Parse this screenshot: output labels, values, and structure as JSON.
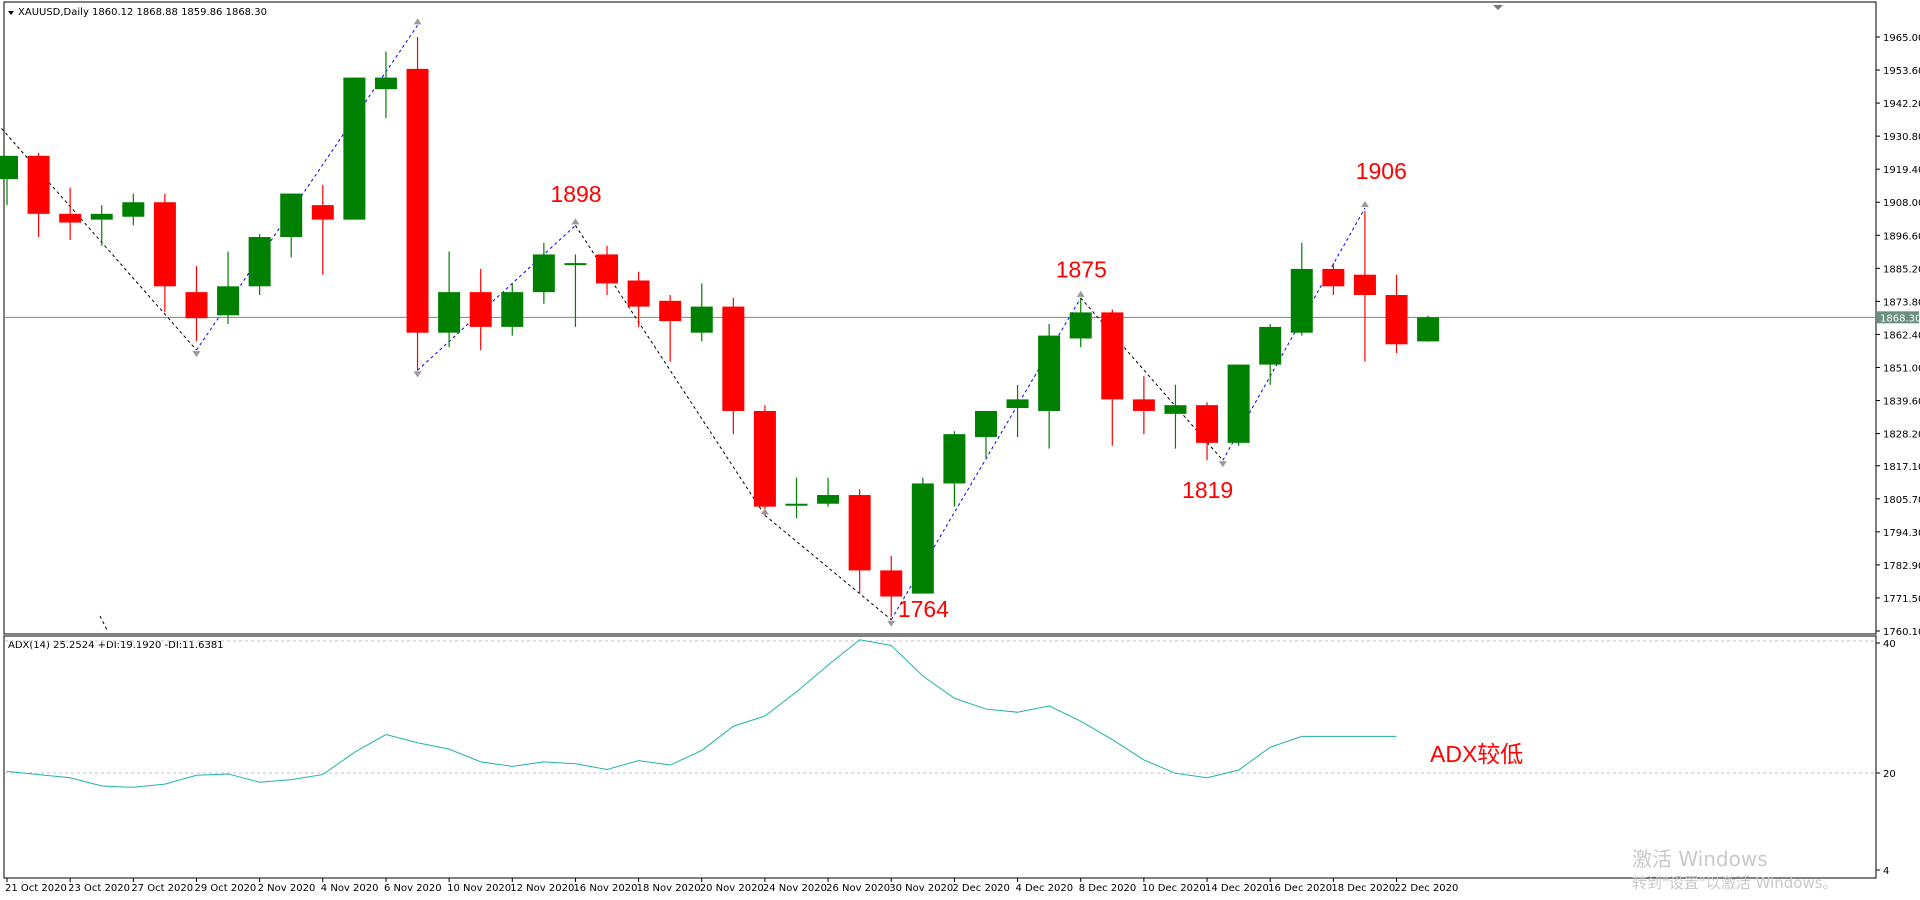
{
  "header": {
    "symbol_label": "XAUUSD,Daily",
    "ohlc_label": "1860.12 1868.88 1859.86 1868.30"
  },
  "indicator": {
    "label": "ADX(14) 25.2524 +DI:19.1920 -DI:11.6381",
    "scale_top": "40",
    "scale_mid": "20",
    "scale_bottom": "4"
  },
  "current_price_label": "1868.30",
  "watermark": {
    "line1": "激活 Windows",
    "line2": "转到\"设置\"以激活 Windows。"
  },
  "colors": {
    "bull": "#008000",
    "bear": "#ff0000",
    "adx_line": "#20b2aa",
    "zigzag_down": "#000000",
    "zigzag_up": "#0000ff",
    "annotation": "#ff0000"
  },
  "chart_data": [
    {
      "type": "candlestick",
      "title": "XAUUSD,Daily",
      "ylim": [
        1760.1,
        1976.0
      ],
      "y_ticks": [
        "1965.00",
        "1953.60",
        "1942.20",
        "1930.80",
        "1919.40",
        "1908.00",
        "1896.60",
        "1885.20",
        "1873.80",
        "1862.40",
        "1851.00",
        "1839.60",
        "1828.20",
        "1817.10",
        "1805.70",
        "1794.30",
        "1782.90",
        "1771.50",
        "1760.10"
      ],
      "x_labels": [
        "21 Oct 2020",
        "23 Oct 2020",
        "27 Oct 2020",
        "29 Oct 2020",
        "2 Nov 2020",
        "4 Nov 2020",
        "6 Nov 2020",
        "10 Nov 2020",
        "12 Nov 2020",
        "16 Nov 2020",
        "18 Nov 2020",
        "20 Nov 2020",
        "24 Nov 2020",
        "26 Nov 2020",
        "30 Nov 2020",
        "2 Dec 2020",
        "4 Dec 2020",
        "8 Dec 2020",
        "10 Dec 2020",
        "14 Dec 2020",
        "16 Dec 2020",
        "18 Dec 2020",
        "22 Dec 2020"
      ],
      "current_price": 1868.3,
      "candles": [
        {
          "o": 1916,
          "h": 1924,
          "l": 1907,
          "c": 1924
        },
        {
          "o": 1924,
          "h": 1925,
          "l": 1896,
          "c": 1904
        },
        {
          "o": 1904,
          "h": 1913,
          "l": 1895,
          "c": 1901
        },
        {
          "o": 1902,
          "h": 1907,
          "l": 1893,
          "c": 1904
        },
        {
          "o": 1903,
          "h": 1911,
          "l": 1900,
          "c": 1908
        },
        {
          "o": 1908,
          "h": 1911,
          "l": 1870,
          "c": 1879
        },
        {
          "o": 1877,
          "h": 1886,
          "l": 1860,
          "c": 1868
        },
        {
          "o": 1869,
          "h": 1891,
          "l": 1866,
          "c": 1879
        },
        {
          "o": 1879,
          "h": 1897,
          "l": 1876,
          "c": 1896
        },
        {
          "o": 1896,
          "h": 1911,
          "l": 1889,
          "c": 1911
        },
        {
          "o": 1907,
          "h": 1914,
          "l": 1883,
          "c": 1902
        },
        {
          "o": 1902,
          "h": 1951,
          "l": 1902,
          "c": 1951
        },
        {
          "o": 1947,
          "h": 1960,
          "l": 1937,
          "c": 1951
        },
        {
          "o": 1954,
          "h": 1965,
          "l": 1850,
          "c": 1863
        },
        {
          "o": 1863,
          "h": 1891,
          "l": 1858,
          "c": 1877
        },
        {
          "o": 1877,
          "h": 1885,
          "l": 1857,
          "c": 1865
        },
        {
          "o": 1865,
          "h": 1880,
          "l": 1862,
          "c": 1877
        },
        {
          "o": 1877,
          "h": 1894,
          "l": 1873,
          "c": 1890
        },
        {
          "o": 1887,
          "h": 1890,
          "l": 1865,
          "c": 1887
        },
        {
          "o": 1890,
          "h": 1893,
          "l": 1876,
          "c": 1880
        },
        {
          "o": 1881,
          "h": 1884,
          "l": 1865,
          "c": 1872
        },
        {
          "o": 1874,
          "h": 1876,
          "l": 1853,
          "c": 1867
        },
        {
          "o": 1863,
          "h": 1880,
          "l": 1860,
          "c": 1872
        },
        {
          "o": 1872,
          "h": 1875,
          "l": 1828,
          "c": 1836
        },
        {
          "o": 1836,
          "h": 1838,
          "l": 1800,
          "c": 1803
        },
        {
          "o": 1804,
          "h": 1813,
          "l": 1799,
          "c": 1804
        },
        {
          "o": 1804,
          "h": 1813,
          "l": 1803,
          "c": 1807
        },
        {
          "o": 1807,
          "h": 1809,
          "l": 1773,
          "c": 1781
        },
        {
          "o": 1781,
          "h": 1786,
          "l": 1765,
          "c": 1772
        },
        {
          "o": 1773,
          "h": 1813,
          "l": 1773,
          "c": 1811
        },
        {
          "o": 1811,
          "h": 1829,
          "l": 1803,
          "c": 1828
        },
        {
          "o": 1827,
          "h": 1834,
          "l": 1820,
          "c": 1836
        },
        {
          "o": 1837,
          "h": 1845,
          "l": 1827,
          "c": 1840
        },
        {
          "o": 1836,
          "h": 1866,
          "l": 1823,
          "c": 1862
        },
        {
          "o": 1861,
          "h": 1875,
          "l": 1858,
          "c": 1870
        },
        {
          "o": 1870,
          "h": 1871,
          "l": 1824,
          "c": 1840
        },
        {
          "o": 1840,
          "h": 1848,
          "l": 1828,
          "c": 1836
        },
        {
          "o": 1835,
          "h": 1845,
          "l": 1823,
          "c": 1838
        },
        {
          "o": 1838,
          "h": 1839,
          "l": 1819,
          "c": 1825
        },
        {
          "o": 1825,
          "h": 1852,
          "l": 1824,
          "c": 1852
        },
        {
          "o": 1852,
          "h": 1866,
          "l": 1845,
          "c": 1865
        },
        {
          "o": 1863,
          "h": 1894,
          "l": 1862,
          "c": 1885
        },
        {
          "o": 1885,
          "h": 1887,
          "l": 1876,
          "c": 1879
        },
        {
          "o": 1883,
          "h": 1905,
          "l": 1853,
          "c": 1876
        },
        {
          "o": 1876,
          "h": 1883,
          "l": 1856,
          "c": 1859
        },
        {
          "o": 1860,
          "h": 1868.88,
          "l": 1859.86,
          "c": 1868.3
        }
      ],
      "zigzag": [
        {
          "i": -0.3,
          "v": 1935
        },
        {
          "i": 6,
          "v": 1857
        },
        {
          "i": 13,
          "v": 1969
        },
        {
          "i": 13,
          "v": 1850
        },
        {
          "i": 18,
          "v": 1900
        },
        {
          "i": 24,
          "v": 1800
        },
        {
          "i": 28,
          "v": 1764
        },
        {
          "i": 34,
          "v": 1875
        },
        {
          "i": 38.5,
          "v": 1819
        },
        {
          "i": 43,
          "v": 1906
        }
      ],
      "annotations": [
        {
          "text": "1898",
          "i": 18,
          "v": 1908
        },
        {
          "text": "1875",
          "i": 34,
          "v": 1882
        },
        {
          "text": "1819",
          "i": 38,
          "v": 1806
        },
        {
          "text": "1764",
          "i": 29,
          "v": 1765
        },
        {
          "text": "1906",
          "i": 43.5,
          "v": 1916
        }
      ]
    },
    {
      "type": "line",
      "title": "ADX(14) 25.2524 +DI:19.1920 -DI:11.6381",
      "ylim": [
        4,
        40
      ],
      "levels": [
        20,
        40
      ],
      "series": [
        {
          "name": "ADX(14)",
          "values": [
            19.5,
            19.0,
            18.5,
            17.2,
            17.0,
            17.5,
            18.9,
            19.1,
            17.8,
            18.2,
            19.0,
            22.5,
            25.3,
            24.0,
            23.0,
            21.0,
            20.3,
            21.0,
            20.7,
            19.8,
            21.2,
            20.5,
            22.8,
            26.6,
            28.2,
            32.0,
            36.2,
            40.2,
            39.3,
            34.5,
            31.0,
            29.3,
            28.8,
            29.8,
            27.4,
            24.5,
            21.3,
            19.2,
            18.5,
            19.7,
            23.3,
            25.0,
            25.0,
            25.0,
            25.0
          ]
        }
      ],
      "annotations": [
        {
          "text": "ADX较低"
        }
      ]
    }
  ]
}
